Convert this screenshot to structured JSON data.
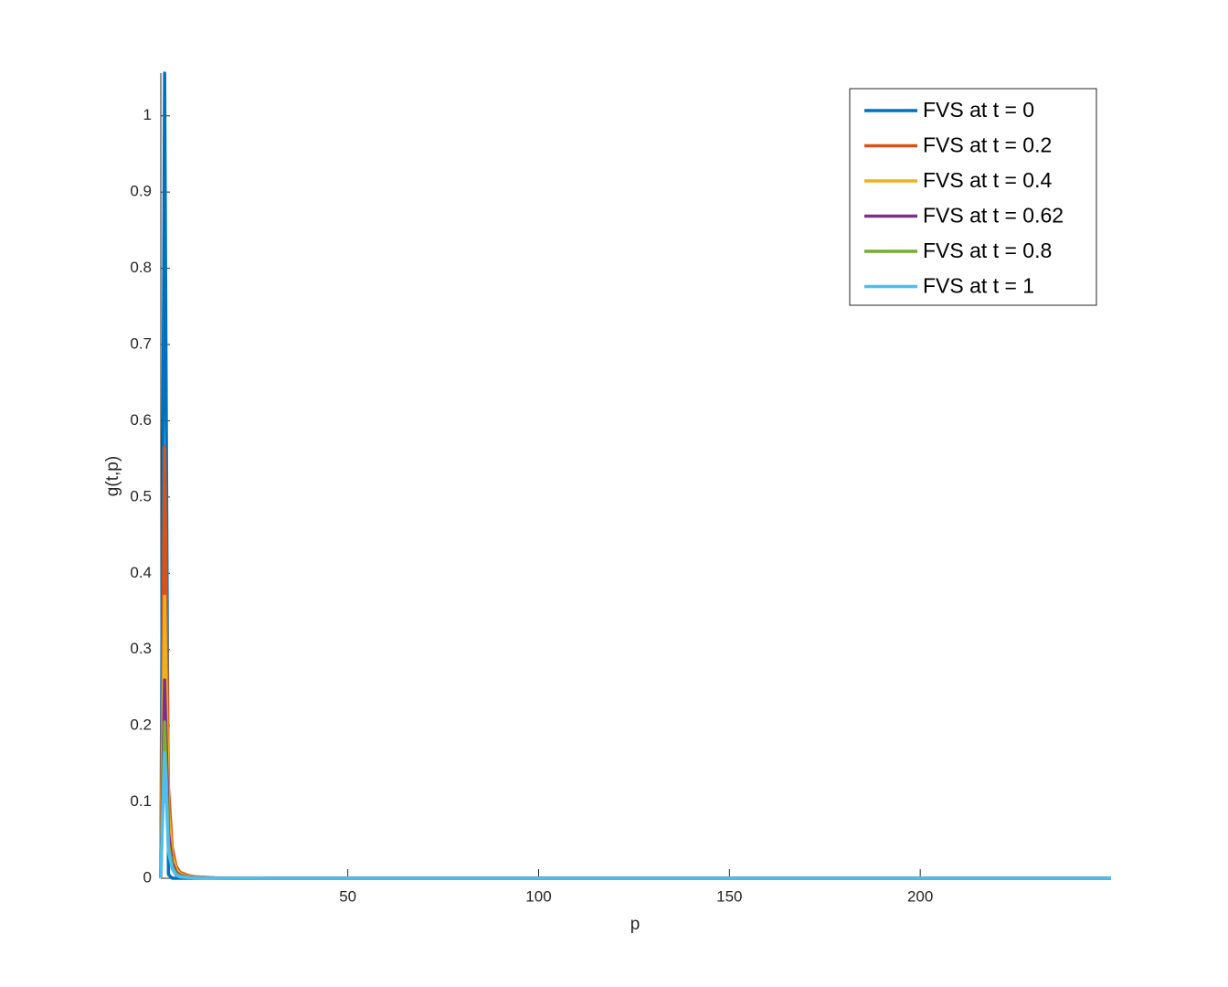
{
  "chart_data": {
    "type": "line",
    "x_label": "p",
    "y_label": "g(t,p)",
    "x": [
      1,
      2,
      3,
      4,
      5,
      6,
      8,
      10,
      15,
      20,
      30,
      50,
      100,
      250
    ],
    "series": [
      {
        "name": "FVS at t = 0",
        "color": "#0072BD",
        "values": [
          0,
          1.056,
          0.005,
          0,
          0,
          0,
          0,
          0,
          0,
          0,
          0,
          0,
          0,
          0
        ]
      },
      {
        "name": "FVS at t = 0.2",
        "color": "#D95319",
        "values": [
          0,
          0.565,
          0.12,
          0.04,
          0.016,
          0.008,
          0.004,
          0.002,
          0.0006,
          0.0002,
          0,
          0,
          0,
          0
        ]
      },
      {
        "name": "FVS at t = 0.4",
        "color": "#EDB120",
        "values": [
          0,
          0.37,
          0.09,
          0.03,
          0.012,
          0.006,
          0.003,
          0.0015,
          0.0005,
          0.0002,
          0,
          0,
          0,
          0
        ]
      },
      {
        "name": "FVS at t = 0.62",
        "color": "#7E2F8E",
        "values": [
          0,
          0.26,
          0.06,
          0.02,
          0.008,
          0.004,
          0.002,
          0.001,
          0.0003,
          0.0001,
          0,
          0,
          0,
          0
        ]
      },
      {
        "name": "FVS at t = 0.8",
        "color": "#77AC30",
        "values": [
          0,
          0.205,
          0.045,
          0.015,
          0.006,
          0.003,
          0.0015,
          0.0008,
          0.0002,
          0.0001,
          0,
          0,
          0,
          0
        ]
      },
      {
        "name": "FVS at t = 1",
        "color": "#4DBEEE",
        "values": [
          0,
          0.165,
          0.035,
          0.012,
          0.004,
          0.002,
          0.001,
          0.0005,
          0.0002,
          0.0001,
          0,
          0,
          0,
          0
        ]
      }
    ],
    "xlim": [
      1,
      250
    ],
    "ylim": [
      0,
      1.056
    ],
    "xticks": [
      50,
      100,
      150,
      200
    ],
    "yticks": [
      0,
      0.1,
      0.2,
      0.3,
      0.4,
      0.5,
      0.6,
      0.7,
      0.8,
      0.9,
      1
    ],
    "grid": false,
    "legend": "northeast"
  }
}
